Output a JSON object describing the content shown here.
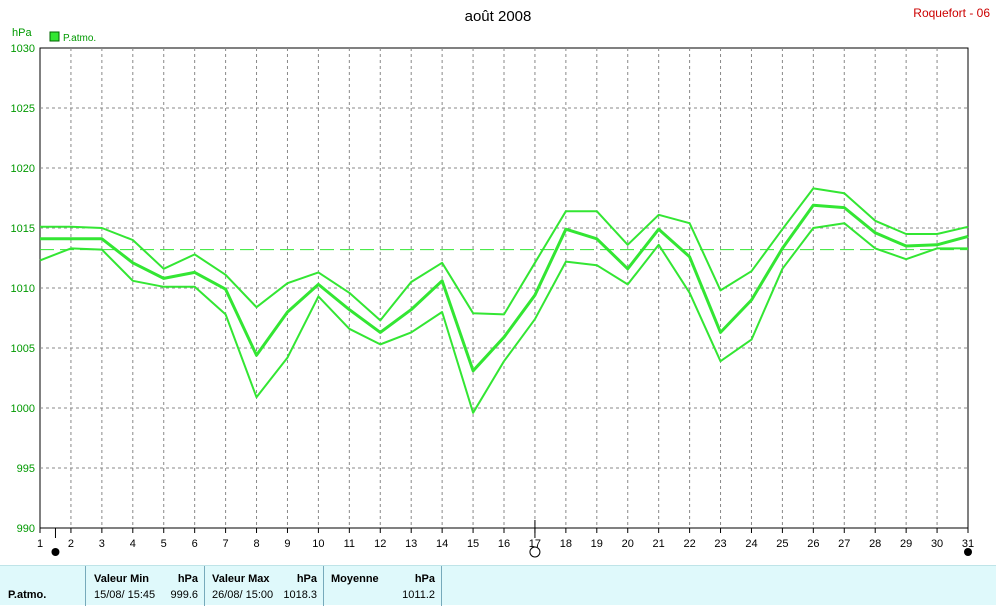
{
  "header": {
    "title": "août 2008",
    "station": "Roquefort - 06",
    "unit": "hPa",
    "legend_label": "P.atmo."
  },
  "colors": {
    "series": "#33e633",
    "station": "#cc0000",
    "axis_text": "#009900",
    "grid": "#888888",
    "footer_bg": "#dff9fb"
  },
  "chart_data": {
    "type": "line",
    "title": "août 2008",
    "ylabel": "hPa",
    "ylim": [
      990,
      1030
    ],
    "yticks": [
      990,
      995,
      1000,
      1005,
      1010,
      1015,
      1020,
      1025,
      1030
    ],
    "xlim": [
      1,
      31
    ],
    "xticks": [
      "1",
      "2",
      "3",
      "4",
      "5",
      "6",
      "7",
      "8",
      "9",
      "10",
      "11",
      "12",
      "13",
      "14",
      "15",
      "16",
      "17",
      "18",
      "19",
      "20",
      "21",
      "22",
      "23",
      "24",
      "25",
      "26",
      "27",
      "28",
      "29",
      "30",
      "31"
    ],
    "grid": true,
    "legend": "top-left",
    "reference_line": 1013.2,
    "x": [
      1,
      2,
      3,
      4,
      5,
      6,
      7,
      8,
      9,
      10,
      11,
      12,
      13,
      14,
      15,
      16,
      17,
      18,
      19,
      20,
      21,
      22,
      23,
      24,
      25,
      26,
      27,
      28,
      29,
      30,
      31
    ],
    "series": [
      {
        "name": "P.atmo.",
        "role": "max",
        "values": [
          1015.1,
          1015.1,
          1015.0,
          1014.0,
          1011.6,
          1012.8,
          1011.1,
          1008.4,
          1010.4,
          1011.3,
          1009.6,
          1007.3,
          1010.5,
          1012.1,
          1007.9,
          1007.8,
          1012.1,
          1016.4,
          1016.4,
          1013.6,
          1016.1,
          1015.4,
          1009.8,
          1011.4,
          1014.9,
          1018.3,
          1017.9,
          1015.6,
          1014.5,
          1014.5,
          1015.1
        ]
      },
      {
        "name": "P.atmo.",
        "role": "mean",
        "values": [
          1014.1,
          1014.1,
          1014.1,
          1012.1,
          1010.8,
          1011.3,
          1009.9,
          1004.4,
          1008.0,
          1010.3,
          1008.2,
          1006.3,
          1008.2,
          1010.6,
          1003.1,
          1005.9,
          1009.4,
          1014.9,
          1014.1,
          1011.6,
          1014.9,
          1012.6,
          1006.3,
          1009.0,
          1013.3,
          1016.9,
          1016.7,
          1014.6,
          1013.5,
          1013.6,
          1014.3
        ]
      },
      {
        "name": "P.atmo.",
        "role": "min",
        "values": [
          1012.3,
          1013.3,
          1013.2,
          1010.6,
          1010.1,
          1010.1,
          1007.8,
          1000.9,
          1004.2,
          1009.3,
          1006.6,
          1005.3,
          1006.3,
          1008.0,
          999.6,
          1003.9,
          1007.4,
          1012.2,
          1011.9,
          1010.3,
          1013.6,
          1009.6,
          1003.9,
          1005.7,
          1011.6,
          1015.0,
          1015.4,
          1013.3,
          1012.4,
          1013.3,
          1013.3
        ]
      }
    ]
  },
  "footer": {
    "param_label": "P.atmo.",
    "min_header": "Valeur Min",
    "min_unit": "hPa",
    "min_time": "15/08/  15:45",
    "min_value": "999.6",
    "max_header": "Valeur Max",
    "max_unit": "hPa",
    "max_time": "26/08/  15:00",
    "max_value": "1018.3",
    "mean_header": "Moyenne",
    "mean_unit": "hPa",
    "mean_value": "1011.2"
  }
}
